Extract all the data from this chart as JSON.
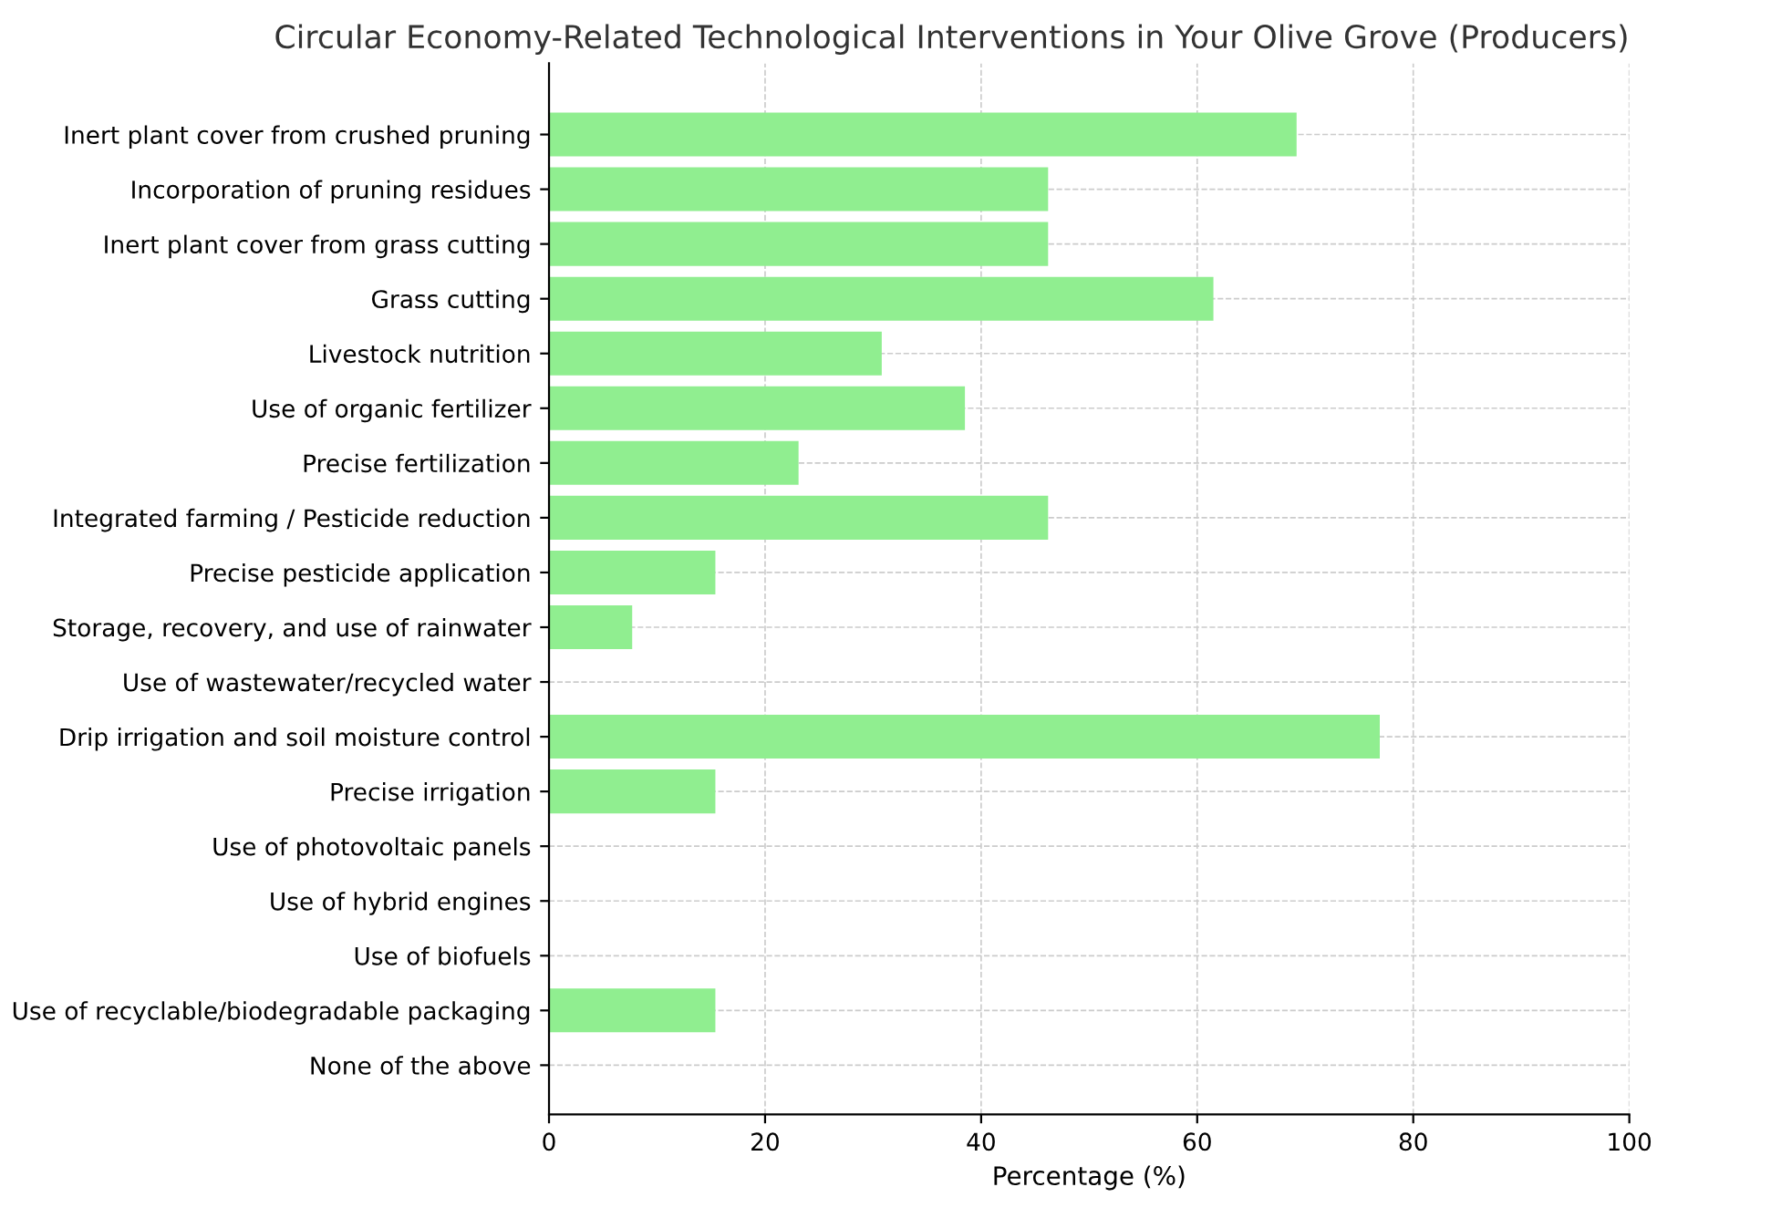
{
  "chart_data": {
    "type": "bar",
    "orientation": "horizontal",
    "title": "Circular Economy-Related Technological Interventions in Your Olive Grove (Producers)",
    "xlabel": "Percentage (%)",
    "categories": [
      "Inert plant cover from crushed pruning",
      "Incorporation of pruning residues",
      "Inert plant cover from grass cutting",
      "Grass cutting",
      "Livestock nutrition",
      "Use of organic fertilizer",
      "Precise fertilization",
      "Integrated farming / Pesticide reduction",
      "Precise pesticide application",
      "Storage, recovery, and use of rainwater",
      "Use of wastewater/recycled water",
      "Drip irrigation and soil moisture control",
      "Precise irrigation",
      "Use of photovoltaic panels",
      "Use of hybrid engines",
      "Use of biofuels",
      "Use of recyclable/biodegradable packaging",
      "None of the above"
    ],
    "values": [
      69.2,
      46.2,
      46.2,
      61.5,
      30.8,
      38.5,
      23.1,
      46.2,
      15.4,
      7.7,
      0,
      76.9,
      15.4,
      0,
      0,
      0,
      15.4,
      0
    ],
    "color": "#90ee90",
    "xlim": [
      0,
      100
    ],
    "xticks": [
      0,
      20,
      40,
      60,
      80,
      100
    ],
    "grid": true
  }
}
